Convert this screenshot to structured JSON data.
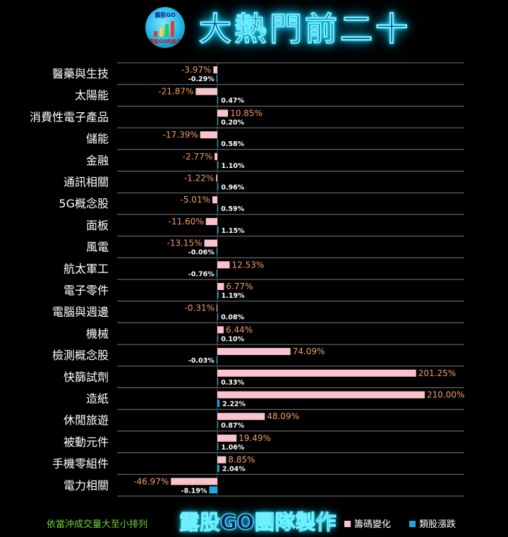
{
  "header": {
    "title": "大熱門前二十",
    "logo_brand": "露股GO",
    "logo_caption": "露股GO的股市"
  },
  "footer": {
    "note": "依當沖成交量大至小排列",
    "brand": "露股GO團隊製作"
  },
  "colors": {
    "chip": "#f8c3cc",
    "price": "#1ea7e1",
    "chip_label": "#f0a060",
    "price_label": "#ffffff",
    "label": "#ffffff",
    "grid": "#7a7a7a"
  },
  "chart_data": {
    "type": "bar",
    "orientation": "horizontal",
    "categories": [
      "醫藥與生技",
      "太陽能",
      "消費性電子產品",
      "儲能",
      "金融",
      "通訊相關",
      "5G概念股",
      "面板",
      "風電",
      "航太軍工",
      "電子零件",
      "電腦與週邊",
      "機械",
      "檢測概念股",
      "快篩試劑",
      "造紙",
      "休閒旅遊",
      "被動元件",
      "手機零組件",
      "電力相關"
    ],
    "series": [
      {
        "name": "籌碼變化",
        "values": [
          -3.97,
          -21.87,
          10.85,
          -17.39,
          -2.77,
          -1.22,
          -5.01,
          -11.6,
          -13.15,
          12.53,
          6.77,
          -0.31,
          6.44,
          74.09,
          201.25,
          210.0,
          48.09,
          19.49,
          8.85,
          -46.97
        ],
        "labels": [
          "-3.97%",
          "-21.87%",
          "10.85%",
          "-17.39%",
          "-2.77%",
          "-1.22%",
          "-5.01%",
          "-11.60%",
          "-13.15%",
          "12.53%",
          "6.77%",
          "-0.31%",
          "6.44%",
          "74.09%",
          "201.25%",
          "210.00%",
          "48.09%",
          "19.49%",
          "8.85%",
          "-46.97%"
        ]
      },
      {
        "name": "類股漲跌",
        "values": [
          -0.29,
          0.47,
          0.2,
          0.58,
          1.1,
          0.96,
          0.59,
          1.15,
          -0.06,
          -0.76,
          1.19,
          0.08,
          0.1,
          -0.03,
          0.33,
          2.22,
          0.87,
          1.06,
          2.04,
          -8.19
        ],
        "labels": [
          "-0.29%",
          "0.47%",
          "0.20%",
          "0.58%",
          "1.10%",
          "0.96%",
          "0.59%",
          "1.15%",
          "-0.06%",
          "-0.76%",
          "1.19%",
          "0.08%",
          "0.10%",
          "-0.03%",
          "0.33%",
          "2.22%",
          "0.87%",
          "1.06%",
          "2.04%",
          "-8.19%"
        ]
      }
    ],
    "legend": "bottom-right",
    "grid": true
  }
}
